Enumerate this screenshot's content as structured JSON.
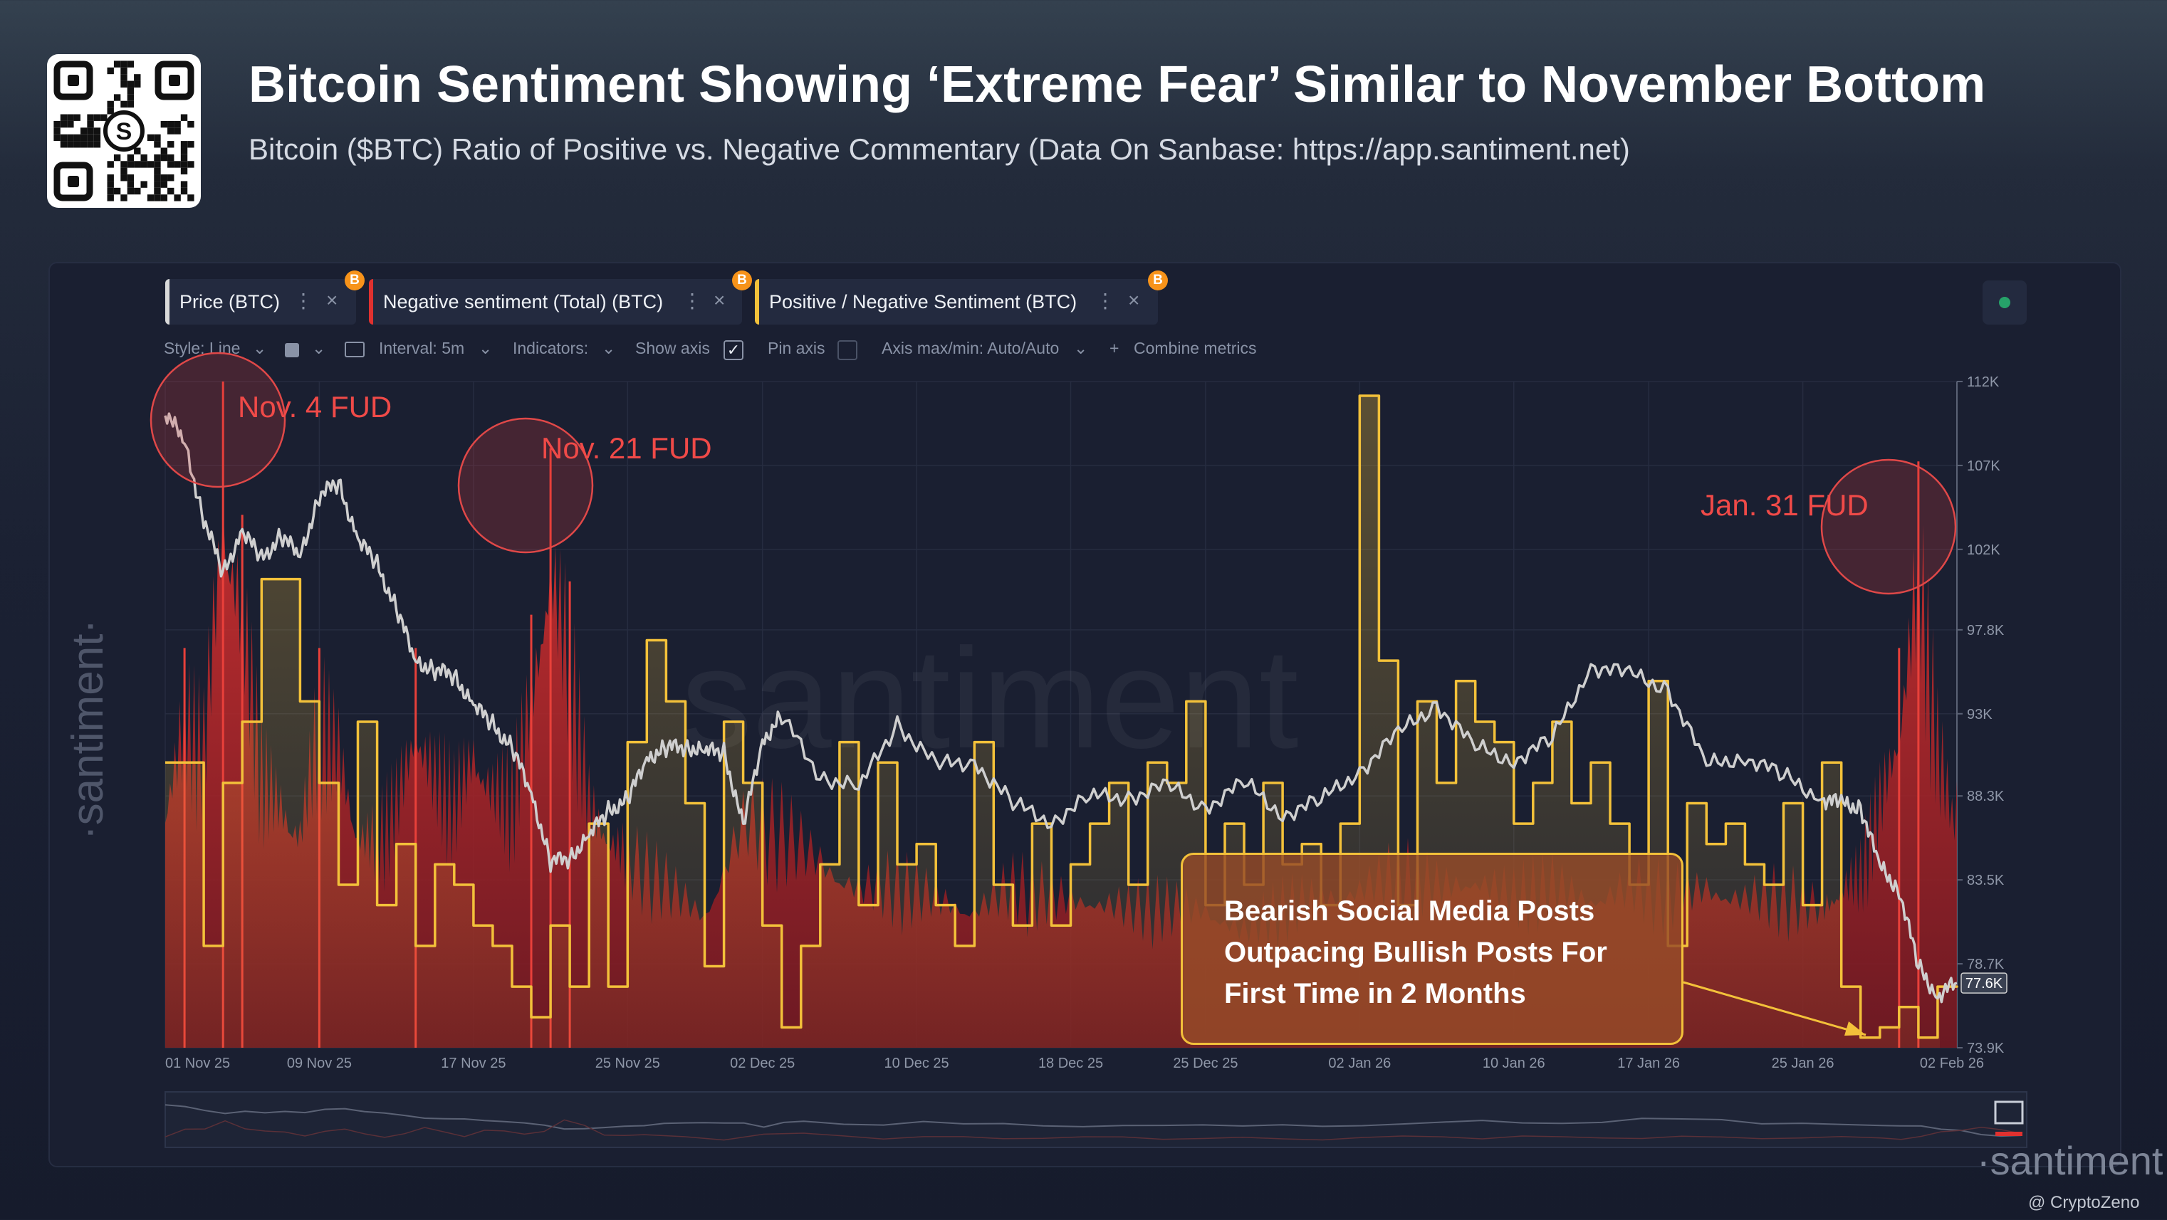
{
  "header": {
    "title": "Bitcoin Sentiment Showing ‘Extreme Fear’ Similar to November Bottom",
    "subtitle": "Bitcoin ($BTC) Ratio of Positive vs. Negative Commentary (Data On Sanbase: https://app.santiment.net)"
  },
  "metric_chips": [
    {
      "label": "Price (BTC)",
      "color": "#d9d9d9"
    },
    {
      "label": "Negative sentiment (Total) (BTC)",
      "color": "#e0312f"
    },
    {
      "label": "Positive / Negative Sentiment (BTC)",
      "color": "#f3c13a"
    }
  ],
  "chip_icons": {
    "menu": "⋮",
    "close": "×",
    "btc": "B"
  },
  "toolbar": {
    "style": "Style: Line",
    "interval": "Interval: 5m",
    "indicators": "Indicators:",
    "show_axis": "Show axis",
    "pin_axis": "Pin axis",
    "axis_maxmin": "Axis max/min: Auto/Auto",
    "combine": "Combine metrics"
  },
  "watermark": {
    "center": "santiment",
    "side": "·santiment·",
    "corner": "·santiment·"
  },
  "callout": {
    "lines": [
      "Bearish Social Media Posts",
      "Outpacing Bullish Posts For",
      "First Time in 2 Months"
    ]
  },
  "credit": "@ CryptoZeno",
  "chart_data": {
    "type": "line",
    "x_tick_labels": [
      "01 Nov 25",
      "09 Nov 25",
      "17 Nov 25",
      "25 Nov 25",
      "02 Dec 25",
      "10 Dec 25",
      "18 Dec 25",
      "25 Dec 25",
      "02 Jan 26",
      "10 Jan 26",
      "17 Jan 26",
      "25 Jan 26",
      "02 Feb 26"
    ],
    "y_tick_labels": [
      "112K",
      "107K",
      "102K",
      "97.8K",
      "93K",
      "88.3K",
      "83.5K",
      "78.7K",
      "73.9K"
    ],
    "ylim": [
      73900,
      112000
    ],
    "current_price_label": "77.6K",
    "annotations": [
      {
        "label": "Nov. 4 FUD",
        "date": "2025-11-04"
      },
      {
        "label": "Nov. 21 FUD",
        "date": "2025-11-21"
      },
      {
        "label": "Jan. 31 FUD",
        "date": "2026-01-31"
      }
    ],
    "series": [
      {
        "name": "Price (BTC)",
        "color": "#cfcfcf",
        "x": [
          "2025-11-01",
          "2025-11-02",
          "2025-11-03",
          "2025-11-04",
          "2025-11-05",
          "2025-11-06",
          "2025-11-07",
          "2025-11-08",
          "2025-11-09",
          "2025-11-10",
          "2025-11-11",
          "2025-11-12",
          "2025-11-13",
          "2025-11-14",
          "2025-11-15",
          "2025-11-16",
          "2025-11-17",
          "2025-11-18",
          "2025-11-19",
          "2025-11-20",
          "2025-11-21",
          "2025-11-22",
          "2025-11-23",
          "2025-11-24",
          "2025-11-25",
          "2025-11-26",
          "2025-11-27",
          "2025-11-28",
          "2025-11-29",
          "2025-11-30",
          "2025-12-01",
          "2025-12-02",
          "2025-12-03",
          "2025-12-05",
          "2025-12-07",
          "2025-12-09",
          "2025-12-11",
          "2025-12-13",
          "2025-12-15",
          "2025-12-17",
          "2025-12-19",
          "2025-12-21",
          "2025-12-23",
          "2025-12-25",
          "2025-12-27",
          "2025-12-29",
          "2025-12-31",
          "2026-01-02",
          "2026-01-04",
          "2026-01-06",
          "2026-01-08",
          "2026-01-10",
          "2026-01-12",
          "2026-01-14",
          "2026-01-16",
          "2026-01-18",
          "2026-01-20",
          "2026-01-22",
          "2026-01-24",
          "2026-01-26",
          "2026-01-27",
          "2026-01-28",
          "2026-01-29",
          "2026-01-30",
          "2026-01-31",
          "2026-02-01",
          "2026-02-02"
        ],
        "values": [
          110300,
          108500,
          104200,
          101000,
          103500,
          101800,
          103200,
          102000,
          105500,
          106200,
          103000,
          101500,
          99000,
          96000,
          95500,
          95200,
          93500,
          92400,
          91000,
          88500,
          84500,
          84800,
          86000,
          87500,
          88000,
          90500,
          91000,
          91200,
          90800,
          90900,
          86500,
          91500,
          92800,
          89500,
          88700,
          92500,
          90000,
          90300,
          87800,
          86900,
          88200,
          88300,
          88800,
          87700,
          89000,
          87300,
          88000,
          89800,
          91800,
          93600,
          91000,
          90400,
          91500,
          95800,
          95200,
          94500,
          90000,
          90600,
          89400,
          88200,
          87800,
          87700,
          84200,
          83000,
          78500,
          76900,
          77600
        ]
      },
      {
        "name": "Negative sentiment (Total) (BTC)",
        "color": "#e0312f",
        "x": [
          "2025-11-01",
          "2025-11-02",
          "2025-11-03",
          "2025-11-04",
          "2025-11-05",
          "2025-11-06",
          "2025-11-07",
          "2025-11-08",
          "2025-11-09",
          "2025-11-10",
          "2025-11-11",
          "2025-11-12",
          "2025-11-13",
          "2025-11-14",
          "2025-11-15",
          "2025-11-16",
          "2025-11-17",
          "2025-11-18",
          "2025-11-19",
          "2025-11-20",
          "2025-11-21",
          "2025-11-22",
          "2025-11-23",
          "2025-11-24",
          "2025-11-25",
          "2025-11-27",
          "2025-11-29",
          "2025-12-01",
          "2025-12-03",
          "2025-12-05",
          "2025-12-07",
          "2025-12-09",
          "2025-12-11",
          "2025-12-13",
          "2025-12-15",
          "2025-12-17",
          "2025-12-19",
          "2025-12-21",
          "2025-12-23",
          "2025-12-25",
          "2025-12-27",
          "2025-12-29",
          "2025-12-31",
          "2026-01-02",
          "2026-01-04",
          "2026-01-06",
          "2026-01-08",
          "2026-01-10",
          "2026-01-12",
          "2026-01-14",
          "2026-01-16",
          "2026-01-18",
          "2026-01-20",
          "2026-01-22",
          "2026-01-24",
          "2026-01-26",
          "2026-01-27",
          "2026-01-28",
          "2026-01-29",
          "2026-01-30",
          "2026-01-31",
          "2026-02-01",
          "2026-02-02"
        ],
        "values": [
          45,
          60,
          55,
          100,
          80,
          50,
          45,
          40,
          60,
          55,
          40,
          38,
          45,
          60,
          50,
          45,
          55,
          48,
          45,
          65,
          90,
          70,
          45,
          40,
          35,
          30,
          25,
          42,
          40,
          35,
          30,
          30,
          28,
          26,
          30,
          28,
          28,
          26,
          26,
          26,
          22,
          26,
          28,
          30,
          32,
          30,
          32,
          28,
          30,
          28,
          30,
          28,
          30,
          28,
          28,
          26,
          30,
          32,
          45,
          60,
          88,
          55,
          40
        ]
      },
      {
        "name": "Positive / Negative Sentiment (BTC)",
        "color": "#f3c13a",
        "x": [
          "2025-11-01",
          "2025-11-03",
          "2025-11-04",
          "2025-11-05",
          "2025-11-06",
          "2025-11-08",
          "2025-11-09",
          "2025-11-10",
          "2025-11-11",
          "2025-11-12",
          "2025-11-13",
          "2025-11-14",
          "2025-11-15",
          "2025-11-16",
          "2025-11-17",
          "2025-11-18",
          "2025-11-19",
          "2025-11-20",
          "2025-11-21",
          "2025-11-22",
          "2025-11-23",
          "2025-11-24",
          "2025-11-25",
          "2025-11-26",
          "2025-11-27",
          "2025-11-28",
          "2025-11-29",
          "2025-11-30",
          "2025-12-01",
          "2025-12-02",
          "2025-12-03",
          "2025-12-04",
          "2025-12-05",
          "2025-12-06",
          "2025-12-07",
          "2025-12-08",
          "2025-12-09",
          "2025-12-10",
          "2025-12-11",
          "2025-12-12",
          "2025-12-13",
          "2025-12-14",
          "2025-12-15",
          "2025-12-16",
          "2025-12-17",
          "2025-12-18",
          "2025-12-19",
          "2025-12-20",
          "2025-12-21",
          "2025-12-22",
          "2025-12-23",
          "2025-12-24",
          "2025-12-25",
          "2025-12-26",
          "2025-12-27",
          "2025-12-28",
          "2025-12-29",
          "2025-12-30",
          "2025-12-31",
          "2026-01-01",
          "2026-01-02",
          "2026-01-03",
          "2026-01-04",
          "2026-01-05",
          "2026-01-06",
          "2026-01-07",
          "2026-01-08",
          "2026-01-09",
          "2026-01-10",
          "2026-01-11",
          "2026-01-12",
          "2026-01-13",
          "2026-01-14",
          "2026-01-15",
          "2026-01-16",
          "2026-01-17",
          "2026-01-18",
          "2026-01-19",
          "2026-01-20",
          "2026-01-21",
          "2026-01-22",
          "2026-01-23",
          "2026-01-24",
          "2026-01-25",
          "2026-01-26",
          "2026-01-27",
          "2026-01-28",
          "2026-01-29",
          "2026-01-30",
          "2026-01-31",
          "2026-02-01",
          "2026-02-02"
        ],
        "values": [
          1.4,
          0.5,
          1.3,
          1.6,
          2.3,
          1.7,
          1.3,
          0.8,
          1.6,
          0.7,
          1.0,
          0.5,
          0.9,
          0.8,
          0.6,
          0.5,
          0.3,
          0.15,
          0.6,
          0.3,
          1.1,
          0.3,
          1.5,
          2.0,
          1.7,
          1.2,
          0.4,
          1.6,
          1.3,
          0.6,
          0.1,
          0.5,
          0.9,
          1.5,
          0.7,
          1.4,
          0.9,
          1.0,
          0.7,
          0.5,
          1.5,
          0.8,
          0.6,
          1.1,
          0.6,
          0.9,
          1.1,
          1.3,
          0.8,
          1.4,
          1.3,
          1.7,
          0.7,
          1.1,
          0.8,
          1.3,
          0.9,
          1.0,
          0.7,
          1.1,
          3.2,
          1.9,
          0.7,
          1.7,
          1.3,
          1.8,
          1.6,
          1.5,
          1.1,
          1.3,
          1.6,
          1.2,
          1.4,
          1.1,
          0.8,
          1.8,
          0.5,
          1.2,
          1.0,
          1.1,
          0.9,
          0.8,
          1.2,
          0.7,
          1.4,
          0.3,
          0.05,
          0.1,
          0.2,
          0.05,
          0.3,
          0.3
        ]
      }
    ]
  }
}
